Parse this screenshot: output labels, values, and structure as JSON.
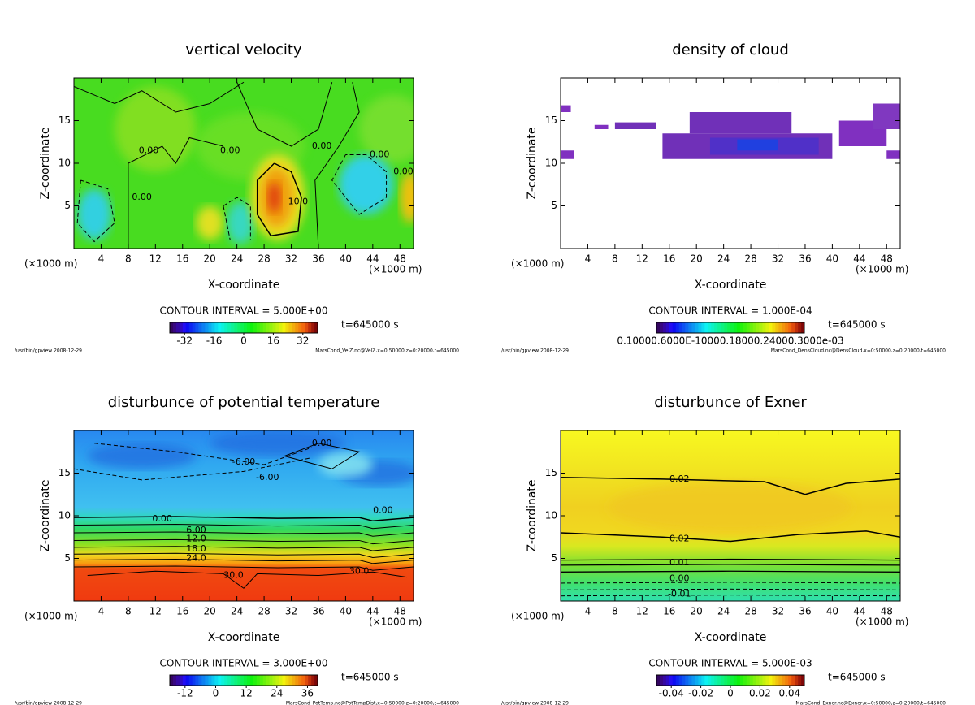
{
  "chart_data": [
    {
      "type": "contour",
      "title": "vertical velocity",
      "x_label": "X-coordinate",
      "y_label": "Z-coordinate",
      "x_unit": "(×1000 m)",
      "xlim": [
        0,
        50
      ],
      "ylim": [
        0,
        20
      ],
      "xticks": [
        4,
        8,
        12,
        16,
        20,
        24,
        28,
        32,
        36,
        40,
        44,
        48
      ],
      "yticks": [
        5,
        10,
        15
      ],
      "contour_interval": "CONTOUR INTERVAL = 5.000E+00",
      "time": "t=645000 s",
      "colorbar": {
        "clim": [
          -40,
          40
        ],
        "ticks": [
          -32,
          -16,
          0,
          16,
          32
        ]
      },
      "footer_left": "/usr/bin/gpview  2008-12-29",
      "footer_right": "MarsCond_VelZ.nc@VelZ,x=0:50000,z=0:20000,t=645000",
      "annotations": [
        {
          "text": "0.00",
          "x": 11,
          "y": 11.5
        },
        {
          "text": "0.00",
          "x": 10,
          "y": 6
        },
        {
          "text": "0.00",
          "x": 23,
          "y": 11.5
        },
        {
          "text": "10.0",
          "x": 33,
          "y": 5.5
        },
        {
          "text": "0.00",
          "x": 36.5,
          "y": 12
        },
        {
          "text": "0.00",
          "x": 45,
          "y": 11
        },
        {
          "text": "0.00",
          "x": 48.5,
          "y": 9
        }
      ]
    },
    {
      "type": "contour",
      "title": "density of cloud",
      "x_label": "X-coordinate",
      "y_label": "Z-coordinate",
      "x_unit": "(×1000 m)",
      "xlim": [
        0,
        50
      ],
      "ylim": [
        0,
        20
      ],
      "xticks": [
        4,
        8,
        12,
        16,
        20,
        24,
        28,
        32,
        36,
        40,
        44,
        48
      ],
      "yticks": [
        5,
        10,
        15
      ],
      "contour_interval": "CONTOUR INTERVAL = 1.000E-04",
      "time": "t=645000 s",
      "colorbar": {
        "label": "0.10000.6000E-10000.18000.24000.3000e-03"
      },
      "footer_left": "/usr/bin/gpview  2008-12-29",
      "footer_right": "MarsCond_DensCloud.nc@DensCloud,x=0:50000,z=0:20000,t=645000",
      "annotations": []
    },
    {
      "type": "contour",
      "title": "disturbunce of potential temperature",
      "x_label": "X-coordinate",
      "y_label": "Z-coordinate",
      "x_unit": "(×1000 m)",
      "xlim": [
        0,
        50
      ],
      "ylim": [
        0,
        20
      ],
      "xticks": [
        4,
        8,
        12,
        16,
        20,
        24,
        28,
        32,
        36,
        40,
        44,
        48
      ],
      "yticks": [
        5,
        10,
        15
      ],
      "contour_interval": "CONTOUR INTERVAL = 3.000E+00",
      "time": "t=645000 s",
      "colorbar": {
        "clim": [
          -18,
          40
        ],
        "ticks": [
          -12,
          0,
          12,
          24,
          36
        ]
      },
      "footer_left": "/usr/bin/gpview  2008-12-29",
      "footer_right": "MarsCond_PotTemp.nc@PotTempDist,x=0:50000,z=0:20000,t=645000",
      "annotations": [
        {
          "text": "0.00",
          "x": 36.5,
          "y": 18.5
        },
        {
          "text": "-6.00",
          "x": 25,
          "y": 16.3
        },
        {
          "text": "-6.00",
          "x": 28.5,
          "y": 14.5
        },
        {
          "text": "0.00",
          "x": 13,
          "y": 9.6
        },
        {
          "text": "0.00",
          "x": 45.5,
          "y": 10.6
        },
        {
          "text": "6.00",
          "x": 18,
          "y": 8.3
        },
        {
          "text": "12.0",
          "x": 18,
          "y": 7.3
        },
        {
          "text": "18.0",
          "x": 18,
          "y": 6.1
        },
        {
          "text": "24.0",
          "x": 18,
          "y": 5
        },
        {
          "text": "30.0",
          "x": 23.5,
          "y": 3
        },
        {
          "text": "30.0",
          "x": 42,
          "y": 3.5
        }
      ]
    },
    {
      "type": "contour",
      "title": "disturbunce of Exner",
      "x_label": "X-coordinate",
      "y_label": "Z-coordinate",
      "x_unit": "(×1000 m)",
      "xlim": [
        0,
        50
      ],
      "ylim": [
        0,
        20
      ],
      "xticks": [
        4,
        8,
        12,
        16,
        20,
        24,
        28,
        32,
        36,
        40,
        44,
        48
      ],
      "yticks": [
        5,
        10,
        15
      ],
      "contour_interval": "CONTOUR INTERVAL = 5.000E-03",
      "time": "t=645000 s",
      "colorbar": {
        "clim": [
          -0.05,
          0.05
        ],
        "ticks": [
          {
            "value": -0.04,
            "label": "-0.04"
          },
          {
            "value": -0.02,
            "label": "-0.02"
          },
          0,
          {
            "value": 0.02,
            "label": "0.02"
          },
          {
            "value": 0.04,
            "label": "0.04"
          }
        ]
      },
      "footer_left": "/usr/bin/gpview  2008-12-29",
      "footer_right": "MarsCond_Exner.nc@Exner,x=0:50000,z=0:20000,t=645000",
      "annotations": [
        {
          "text": "0.02",
          "x": 17.5,
          "y": 14.3
        },
        {
          "text": "0.02",
          "x": 17.5,
          "y": 7.3
        },
        {
          "text": "0.01",
          "x": 17.5,
          "y": 4.5
        },
        {
          "text": "0.00",
          "x": 17.5,
          "y": 2.6
        },
        {
          "text": "-0.01",
          "x": 17.5,
          "y": 0.8
        }
      ]
    }
  ]
}
